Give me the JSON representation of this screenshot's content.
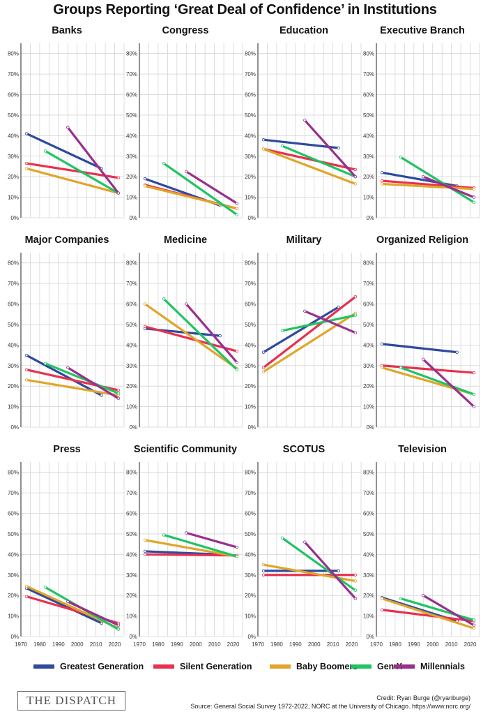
{
  "title": "Groups Reporting ‘Great Deal of Confidence’ in Institutions",
  "credit_line": "Credit: Ryan Burge (@ryanburge)",
  "source_line": "Source: General Social Survey 1972-2022, NORC at the University of Chicago. https://www.norc.org/",
  "brand_logo": "THE DISPATCH",
  "legend": [
    {
      "name": "Greatest Generation",
      "color": "#2e4a9e"
    },
    {
      "name": "Silent Generation",
      "color": "#e8304f"
    },
    {
      "name": "Baby Boomers",
      "color": "#e0a52a"
    },
    {
      "name": "Gen X",
      "color": "#1fc463"
    },
    {
      "name": "Millennials",
      "color": "#98308d"
    }
  ],
  "chart_data": {
    "type": "line",
    "facets": "small-multiples",
    "xlim": [
      1970,
      2025
    ],
    "ylim": [
      0,
      0.85
    ],
    "x_ticks": [
      1970,
      1980,
      1990,
      2000,
      2010,
      2020
    ],
    "x_tick_labels": [
      "1970",
      "1980",
      "1990",
      "2000",
      "2010",
      "2020"
    ],
    "y_ticks": [
      0,
      0.1,
      0.2,
      0.3,
      0.4,
      0.5,
      0.6,
      0.7,
      0.8
    ],
    "y_tick_labels": [
      "0%",
      "10%",
      "20%",
      "30%",
      "40%",
      "50%",
      "60%",
      "70%",
      "80%"
    ],
    "grid": true,
    "legend_position": "bottom",
    "panels": [
      {
        "title": "Banks",
        "series": [
          {
            "name": "Greatest Generation",
            "x": [
              1973,
              2013
            ],
            "y": [
              0.41,
              0.24
            ]
          },
          {
            "name": "Silent Generation",
            "x": [
              1973,
              2022
            ],
            "y": [
              0.265,
              0.195
            ]
          },
          {
            "name": "Baby Boomers",
            "x": [
              1973,
              2022
            ],
            "y": [
              0.24,
              0.12
            ]
          },
          {
            "name": "Gen X",
            "x": [
              1983,
              2022
            ],
            "y": [
              0.325,
              0.12
            ]
          },
          {
            "name": "Millennials",
            "x": [
              1995,
              2022
            ],
            "y": [
              0.44,
              0.12
            ]
          }
        ]
      },
      {
        "title": "Congress",
        "series": [
          {
            "name": "Greatest Generation",
            "x": [
              1973,
              2013
            ],
            "y": [
              0.19,
              0.06
            ]
          },
          {
            "name": "Silent Generation",
            "x": [
              1973,
              2022
            ],
            "y": [
              0.16,
              0.045
            ]
          },
          {
            "name": "Baby Boomers",
            "x": [
              1973,
              2022
            ],
            "y": [
              0.155,
              0.045
            ]
          },
          {
            "name": "Gen X",
            "x": [
              1983,
              2022
            ],
            "y": [
              0.265,
              0.015
            ]
          },
          {
            "name": "Millennials",
            "x": [
              1995,
              2022
            ],
            "y": [
              0.225,
              0.07
            ]
          }
        ]
      },
      {
        "title": "Education",
        "series": [
          {
            "name": "Greatest Generation",
            "x": [
              1973,
              2013
            ],
            "y": [
              0.38,
              0.34
            ]
          },
          {
            "name": "Silent Generation",
            "x": [
              1973,
              2022
            ],
            "y": [
              0.335,
              0.235
            ]
          },
          {
            "name": "Baby Boomers",
            "x": [
              1973,
              2022
            ],
            "y": [
              0.335,
              0.165
            ]
          },
          {
            "name": "Gen X",
            "x": [
              1983,
              2022
            ],
            "y": [
              0.35,
              0.2
            ]
          },
          {
            "name": "Millennials",
            "x": [
              1995,
              2022
            ],
            "y": [
              0.475,
              0.2
            ]
          }
        ]
      },
      {
        "title": "Executive Branch",
        "series": [
          {
            "name": "Greatest Generation",
            "x": [
              1973,
              2013
            ],
            "y": [
              0.22,
              0.155
            ]
          },
          {
            "name": "Silent Generation",
            "x": [
              1973,
              2022
            ],
            "y": [
              0.18,
              0.145
            ]
          },
          {
            "name": "Baby Boomers",
            "x": [
              1973,
              2022
            ],
            "y": [
              0.165,
              0.14
            ]
          },
          {
            "name": "Gen X",
            "x": [
              1983,
              2022
            ],
            "y": [
              0.295,
              0.075
            ]
          },
          {
            "name": "Millennials",
            "x": [
              1995,
              2022
            ],
            "y": [
              0.2,
              0.1
            ]
          }
        ]
      },
      {
        "title": "Major Companies",
        "series": [
          {
            "name": "Greatest Generation",
            "x": [
              1973,
              2013
            ],
            "y": [
              0.35,
              0.155
            ]
          },
          {
            "name": "Silent Generation",
            "x": [
              1973,
              2022
            ],
            "y": [
              0.28,
              0.18
            ]
          },
          {
            "name": "Baby Boomers",
            "x": [
              1973,
              2022
            ],
            "y": [
              0.23,
              0.155
            ]
          },
          {
            "name": "Gen X",
            "x": [
              1983,
              2022
            ],
            "y": [
              0.31,
              0.165
            ]
          },
          {
            "name": "Millennials",
            "x": [
              1995,
              2022
            ],
            "y": [
              0.29,
              0.14
            ]
          }
        ]
      },
      {
        "title": "Medicine",
        "series": [
          {
            "name": "Greatest Generation",
            "x": [
              1973,
              2013
            ],
            "y": [
              0.48,
              0.445
            ]
          },
          {
            "name": "Silent Generation",
            "x": [
              1973,
              2022
            ],
            "y": [
              0.49,
              0.37
            ]
          },
          {
            "name": "Baby Boomers",
            "x": [
              1973,
              2022
            ],
            "y": [
              0.6,
              0.285
            ]
          },
          {
            "name": "Gen X",
            "x": [
              1983,
              2022
            ],
            "y": [
              0.625,
              0.28
            ]
          },
          {
            "name": "Millennials",
            "x": [
              1995,
              2022
            ],
            "y": [
              0.6,
              0.315
            ]
          }
        ]
      },
      {
        "title": "Military",
        "series": [
          {
            "name": "Greatest Generation",
            "x": [
              1973,
              2013
            ],
            "y": [
              0.365,
              0.585
            ]
          },
          {
            "name": "Silent Generation",
            "x": [
              1973,
              2022
            ],
            "y": [
              0.29,
              0.635
            ]
          },
          {
            "name": "Baby Boomers",
            "x": [
              1973,
              2022
            ],
            "y": [
              0.27,
              0.555
            ]
          },
          {
            "name": "Gen X",
            "x": [
              1983,
              2022
            ],
            "y": [
              0.47,
              0.545
            ]
          },
          {
            "name": "Millennials",
            "x": [
              1995,
              2022
            ],
            "y": [
              0.565,
              0.46
            ]
          }
        ]
      },
      {
        "title": "Organized Religion",
        "series": [
          {
            "name": "Greatest Generation",
            "x": [
              1973,
              2013
            ],
            "y": [
              0.405,
              0.365
            ]
          },
          {
            "name": "Silent Generation",
            "x": [
              1973,
              2022
            ],
            "y": [
              0.3,
              0.265
            ]
          },
          {
            "name": "Baby Boomers",
            "x": [
              1973,
              2022
            ],
            "y": [
              0.29,
              0.16
            ]
          },
          {
            "name": "Gen X",
            "x": [
              1983,
              2022
            ],
            "y": [
              0.29,
              0.16
            ]
          },
          {
            "name": "Millennials",
            "x": [
              1995,
              2022
            ],
            "y": [
              0.33,
              0.1
            ]
          }
        ]
      },
      {
        "title": "Press",
        "series": [
          {
            "name": "Greatest Generation",
            "x": [
              1973,
              2013
            ],
            "y": [
              0.235,
              0.065
            ]
          },
          {
            "name": "Silent Generation",
            "x": [
              1973,
              2022
            ],
            "y": [
              0.195,
              0.065
            ]
          },
          {
            "name": "Baby Boomers",
            "x": [
              1973,
              2022
            ],
            "y": [
              0.245,
              0.04
            ]
          },
          {
            "name": "Gen X",
            "x": [
              1983,
              2022
            ],
            "y": [
              0.24,
              0.035
            ]
          },
          {
            "name": "Millennials",
            "x": [
              1995,
              2022
            ],
            "y": [
              0.17,
              0.055
            ]
          }
        ]
      },
      {
        "title": "Scientific Community",
        "series": [
          {
            "name": "Greatest Generation",
            "x": [
              1973,
              2013
            ],
            "y": [
              0.415,
              0.4
            ]
          },
          {
            "name": "Silent Generation",
            "x": [
              1973,
              2022
            ],
            "y": [
              0.4,
              0.395
            ]
          },
          {
            "name": "Baby Boomers",
            "x": [
              1973,
              2022
            ],
            "y": [
              0.47,
              0.39
            ]
          },
          {
            "name": "Gen X",
            "x": [
              1983,
              2022
            ],
            "y": [
              0.495,
              0.39
            ]
          },
          {
            "name": "Millennials",
            "x": [
              1995,
              2022
            ],
            "y": [
              0.505,
              0.435
            ]
          }
        ]
      },
      {
        "title": "SCOTUS",
        "series": [
          {
            "name": "Greatest Generation",
            "x": [
              1973,
              2013
            ],
            "y": [
              0.32,
              0.32
            ]
          },
          {
            "name": "Silent Generation",
            "x": [
              1973,
              2022
            ],
            "y": [
              0.3,
              0.3
            ]
          },
          {
            "name": "Baby Boomers",
            "x": [
              1973,
              2022
            ],
            "y": [
              0.35,
              0.27
            ]
          },
          {
            "name": "Gen X",
            "x": [
              1983,
              2022
            ],
            "y": [
              0.48,
              0.225
            ]
          },
          {
            "name": "Millennials",
            "x": [
              1995,
              2022
            ],
            "y": [
              0.46,
              0.185
            ]
          }
        ]
      },
      {
        "title": "Television",
        "series": [
          {
            "name": "Greatest Generation",
            "x": [
              1973,
              2013
            ],
            "y": [
              0.19,
              0.075
            ]
          },
          {
            "name": "Silent Generation",
            "x": [
              1973,
              2022
            ],
            "y": [
              0.13,
              0.075
            ]
          },
          {
            "name": "Baby Boomers",
            "x": [
              1973,
              2022
            ],
            "y": [
              0.185,
              0.04
            ]
          },
          {
            "name": "Gen X",
            "x": [
              1983,
              2022
            ],
            "y": [
              0.185,
              0.08
            ]
          },
          {
            "name": "Millennials",
            "x": [
              1995,
              2022
            ],
            "y": [
              0.2,
              0.055
            ]
          }
        ]
      }
    ]
  }
}
